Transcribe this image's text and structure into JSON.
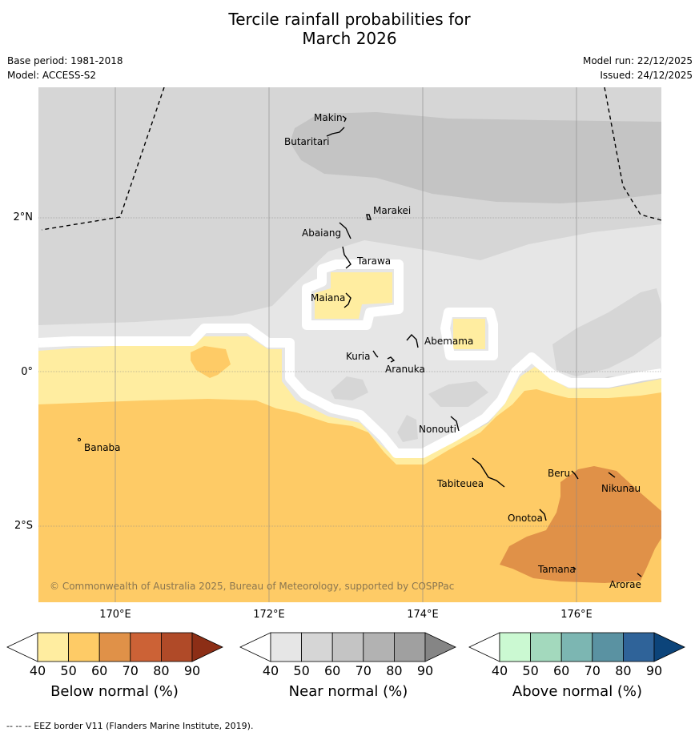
{
  "title": {
    "line1": "Tercile rainfall probabilities for",
    "line2": "March 2026"
  },
  "meta": {
    "base_period": "Base period: 1981-2018",
    "model": "Model: ACCESS-S2",
    "model_run": "Model run: 22/12/2025",
    "issued": "Issued: 24/12/2025"
  },
  "copyright": "© Commonwealth of Australia 2025, Bureau of Meteorology, supported by COSPPac",
  "axes": {
    "longitudes": [
      "170°E",
      "172°E",
      "174°E",
      "176°E"
    ],
    "latitudes": [
      "2°N",
      "0°",
      "2°S"
    ]
  },
  "places": [
    "Makin",
    "Butaritari",
    "Marakei",
    "Abaiang",
    "Tarawa",
    "Maiana",
    "Abemama",
    "Kuria",
    "Aranuka",
    "Banaba",
    "Nonouti",
    "Beru",
    "Tabiteuea",
    "Nikunau",
    "Onotoa",
    "Tamana",
    "Arorae"
  ],
  "colorbars": {
    "ticks": [
      "40",
      "50",
      "60",
      "70",
      "80",
      "90"
    ],
    "below": {
      "label": "Below normal (%)",
      "colors": [
        "#ffeda0",
        "#fecb66",
        "#e09148",
        "#cc6236",
        "#b04a28",
        "#8c2e16"
      ]
    },
    "near": {
      "label": "Near normal (%)",
      "colors": [
        "#e6e6e6",
        "#d6d6d6",
        "#c4c4c4",
        "#b2b2b2",
        "#a0a0a0",
        "#858585"
      ]
    },
    "above": {
      "label": "Above normal (%)",
      "colors": [
        "#cbf9d2",
        "#a3d9bd",
        "#7cb6b2",
        "#5a92a2",
        "#2f6399",
        "#0c447a"
      ]
    }
  },
  "footnote": "--  --  -- EEZ border V11 (Flanders Marine Institute, 2019)."
}
